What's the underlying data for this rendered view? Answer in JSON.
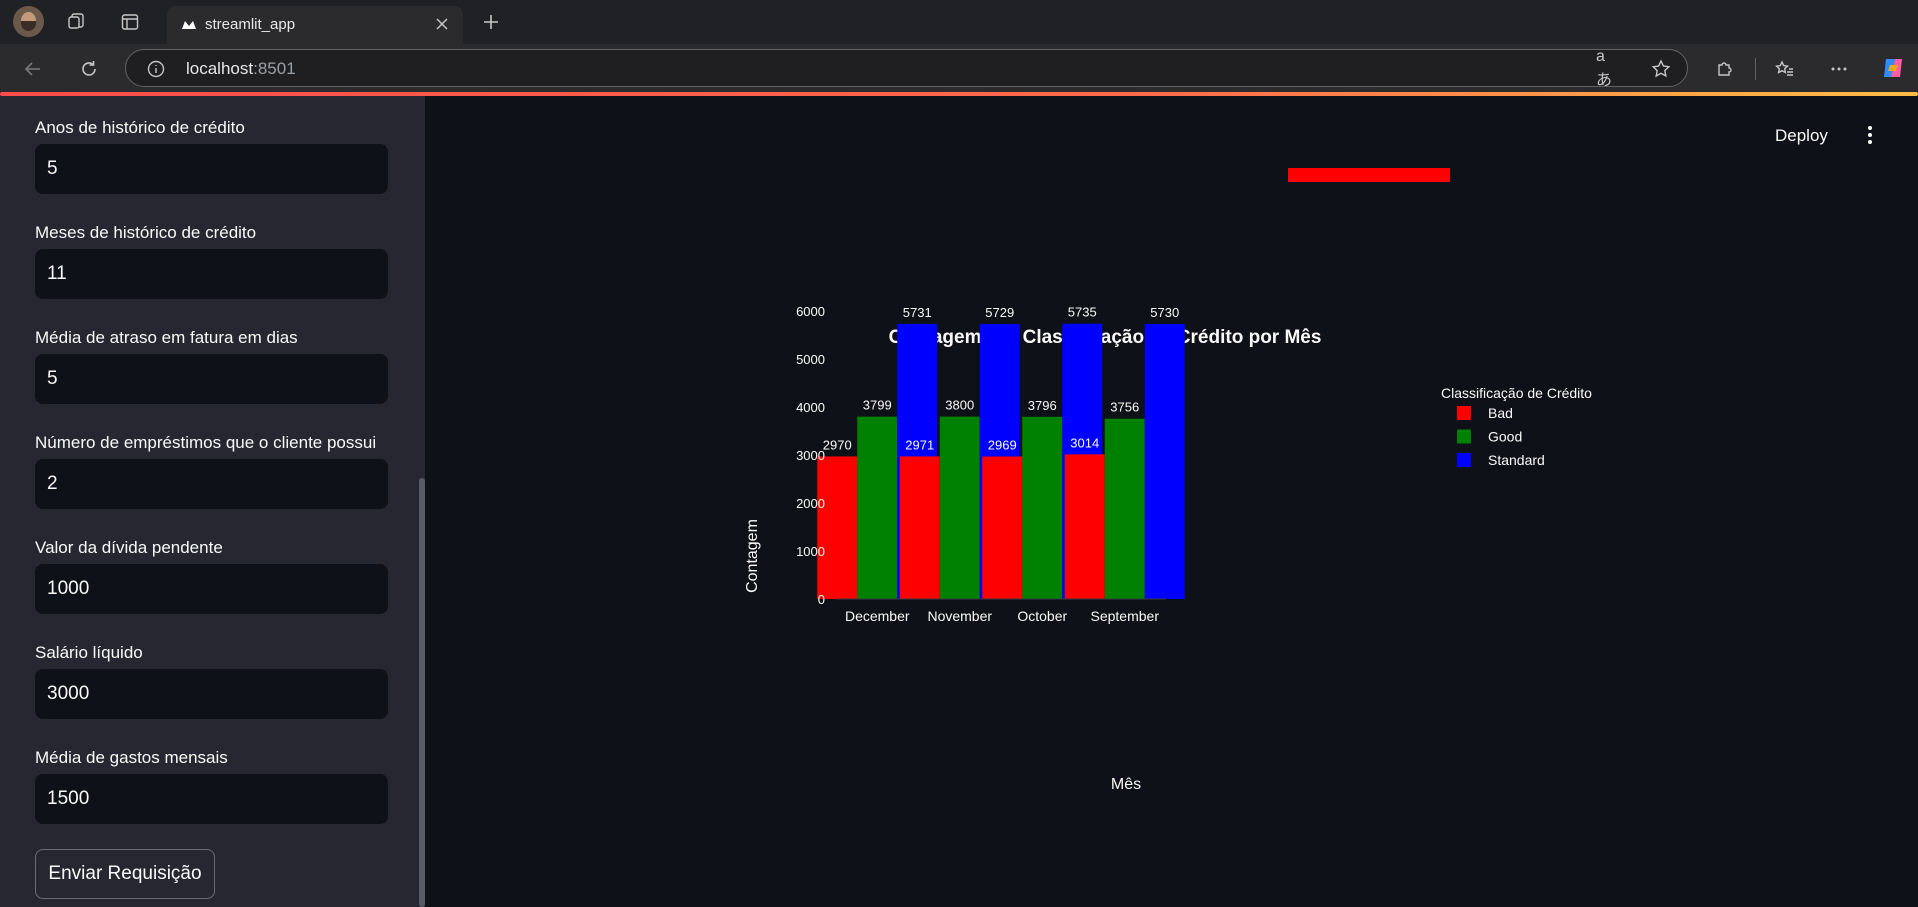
{
  "browser": {
    "tab_title": "streamlit_app",
    "url_host": "localhost",
    "url_port": ":8501"
  },
  "sidebar": {
    "fields": [
      {
        "label": "Anos de histórico de crédito",
        "value": "5"
      },
      {
        "label": "Meses de histórico de crédito",
        "value": "11"
      },
      {
        "label": "Média de atraso em fatura em dias",
        "value": "5"
      },
      {
        "label": "Número de empréstimos que o cliente possui",
        "value": "2"
      },
      {
        "label": "Valor da dívida pendente",
        "value": "1000"
      },
      {
        "label": "Salário líquido",
        "value": "3000"
      },
      {
        "label": "Média de gastos mensais",
        "value": "1500"
      }
    ],
    "submit_label": "Enviar Requisição"
  },
  "header": {
    "deploy_label": "Deploy"
  },
  "colors": {
    "Bad": "#ff0000",
    "Good": "#008000",
    "Standard": "#0000ff"
  },
  "chart_data": {
    "type": "bar",
    "title": "Contagem por Classificação de Crédito por Mês",
    "xlabel": "Mês",
    "ylabel": "Contagem",
    "categories": [
      "December",
      "November",
      "October",
      "September"
    ],
    "series": [
      {
        "name": "Bad",
        "color": "#ff0000",
        "values": [
          2970,
          2971,
          2969,
          3014
        ]
      },
      {
        "name": "Good",
        "color": "#008000",
        "values": [
          3799,
          3800,
          3796,
          3756
        ]
      },
      {
        "name": "Standard",
        "color": "#0000ff",
        "values": [
          5731,
          5729,
          5735,
          5730
        ]
      }
    ],
    "ylim": [
      0,
      6000
    ],
    "yticks": [
      0,
      1000,
      2000,
      3000,
      4000,
      5000,
      6000
    ],
    "legend_title": "Classificação de Crédito",
    "legend_position": "right",
    "grid": false,
    "data_labels": true,
    "barmode": "group"
  }
}
